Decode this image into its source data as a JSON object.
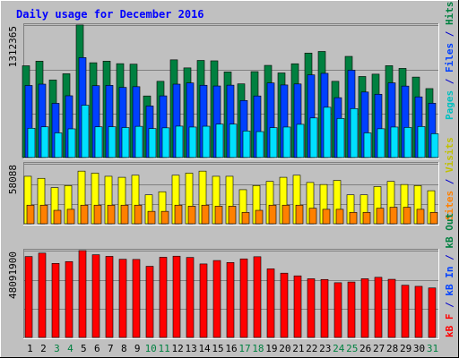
{
  "chart_data": {
    "type": "bar",
    "title": "Daily usage for December 2016",
    "categories": [
      "1",
      "2",
      "3",
      "4",
      "5",
      "6",
      "7",
      "8",
      "9",
      "10",
      "11",
      "12",
      "13",
      "14",
      "15",
      "16",
      "17",
      "18",
      "19",
      "20",
      "21",
      "22",
      "23",
      "24",
      "25",
      "26",
      "27",
      "28",
      "29",
      "30",
      "31"
    ],
    "weekend_days": [
      "3",
      "4",
      "10",
      "11",
      "17",
      "18",
      "24",
      "25",
      "31"
    ],
    "grid": true,
    "panels": [
      {
        "name": "hits-files-pages",
        "ytick_label": "1312365",
        "ymax": 1312365,
        "series": [
          {
            "name": "Hits",
            "color": "#008040",
            "values": [
              909000,
              955000,
              768000,
              830000,
              1313000,
              939000,
              955000,
              930000,
              925000,
              610000,
              755000,
              968000,
              888000,
              962000,
              958000,
              848000,
              730000,
              851000,
              913000,
              838000,
              929000,
              1035000,
              1051000,
              755000,
              1002000,
              803000,
              826000,
              910000,
              883000,
              797000,
              683000
            ]
          },
          {
            "name": "Files",
            "color": "#0040ff",
            "values": [
              714000,
              727000,
              537000,
              612000,
              990000,
              712000,
              715000,
              695000,
              702000,
              511000,
              611000,
              727000,
              739000,
              716000,
              709000,
              717000,
              565000,
              610000,
              739000,
              719000,
              729000,
              819000,
              834000,
              593000,
              865000,
              649000,
              627000,
              740000,
              708000,
              601000,
              538000
            ]
          },
          {
            "name": "Pages",
            "color": "#00e0ff",
            "values": [
              290000,
              304000,
              244000,
              284000,
              518000,
              304000,
              305000,
              297000,
              309000,
              287000,
              294000,
              311000,
              302000,
              310000,
              331000,
              331000,
              263000,
              257000,
              296000,
              302000,
              329000,
              392000,
              498000,
              387000,
              485000,
              244000,
              285000,
              302000,
              298000,
              307000,
              236000
            ]
          }
        ]
      },
      {
        "name": "visits-sites",
        "ytick_label": "58088",
        "ymax": 58088,
        "series": [
          {
            "name": "Visits",
            "color": "#ffff00",
            "values": [
              46000,
              44000,
              35000,
              37000,
              51000,
              49000,
              46000,
              45000,
              47000,
              28000,
              31000,
              47000,
              49000,
              51000,
              46000,
              46000,
              33000,
              37000,
              41000,
              45000,
              47000,
              40000,
              38000,
              42000,
              28000,
              28000,
              36000,
              41000,
              38000,
              37000,
              32000
            ]
          },
          {
            "name": "Sites",
            "color": "#ff8000",
            "values": [
              18000,
              18000,
              13000,
              14000,
              18000,
              18000,
              18000,
              18000,
              18000,
              12000,
              12000,
              18000,
              17000,
              18000,
              17000,
              17000,
              11000,
              13000,
              18000,
              18000,
              18000,
              15000,
              14000,
              14000,
              11000,
              11000,
              15000,
              16000,
              16000,
              14000,
              11000
            ]
          }
        ]
      },
      {
        "name": "kbytes",
        "ytick_label": "48091900",
        "ymax": 48091900,
        "series": [
          {
            "name": "KB F",
            "color": "#ff0000",
            "values": [
              44800000,
              46700000,
              41000000,
              42000000,
              48091900,
              45800000,
              44900000,
              43300000,
              43200000,
              39400000,
              44400000,
              45000000,
              44300000,
              40700000,
              42600000,
              41500000,
              43500000,
              44700000,
              38000000,
              35600000,
              34100000,
              32500000,
              32100000,
              30300000,
              30700000,
              32500000,
              33300000,
              32200000,
              28900000,
              28300000,
              27400000
            ]
          }
        ]
      }
    ],
    "legend": [
      {
        "text": "Pages",
        "color": "#00c0c0"
      },
      {
        "text": " / ",
        "color": "#0000cc"
      },
      {
        "text": "Files",
        "color": "#0040ff"
      },
      {
        "text": " / ",
        "color": "#0000cc"
      },
      {
        "text": "Hits",
        "color": "#008040"
      },
      {
        "text": "Sites",
        "color": "#ff8000"
      },
      {
        "text": " / ",
        "color": "#0000cc"
      },
      {
        "text": "Visits",
        "color": "#c0c000"
      },
      {
        "text": "kB F",
        "color": "#ff0000"
      },
      {
        "text": " / ",
        "color": "#0000cc"
      },
      {
        "text": "kB In",
        "color": "#0040ff"
      },
      {
        "text": " / ",
        "color": "#0000cc"
      },
      {
        "text": "kB Out",
        "color": "#008040"
      }
    ],
    "colors": {
      "frame_bg": "#c0c0c0",
      "plot_bg": "#c0c0c0",
      "title": "#0000ff",
      "day_label": "#000000",
      "weekend_label": "#008040",
      "gridline": "#808080"
    }
  }
}
